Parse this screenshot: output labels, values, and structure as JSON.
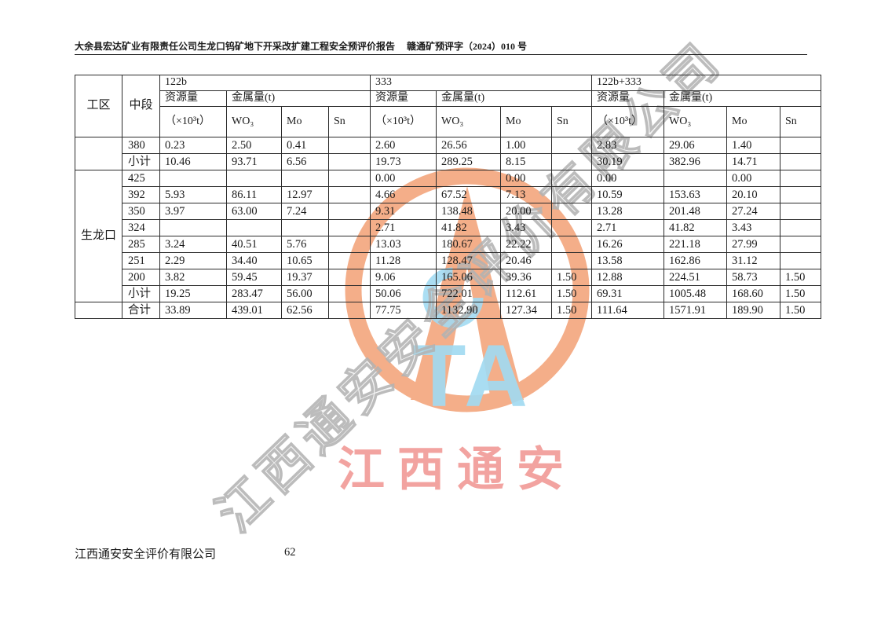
{
  "page": {
    "header_left": "大余县宏达矿业有限责任公司生龙口钨矿地下开采改扩建工程安全预评价报告",
    "header_right": "赣通矿预评字（2024）010 号",
    "footer_company": "江西通安安全评价有限公司",
    "page_number": "62"
  },
  "watermark": {
    "diagonal_text": "江西通安安全评价有限公司",
    "brand_text": "江西通安",
    "logo_letters": "TA",
    "colors": {
      "logo_orange": "#f29d70",
      "logo_blue": "#8ed3ee",
      "brand_red": "#f2a3a0",
      "diagonal_gray": "#c9c9c9"
    }
  },
  "table": {
    "work_area_header": "工区",
    "level_header": "中段",
    "area_label": "生龙口",
    "groups": [
      {
        "label": "122b",
        "resource": "资源量",
        "unit": "（×10³t）",
        "metal": "金属量(t)",
        "metals": [
          "WO₃",
          "Mo",
          "Sn"
        ]
      },
      {
        "label": "333",
        "resource": "资源量",
        "unit": "（×10³t）",
        "metal": "金属量(t)",
        "metals": [
          "WO₃",
          "Mo",
          "Sn"
        ]
      },
      {
        "label": "122b+333",
        "resource": "资源量",
        "unit": "（×10³t）",
        "metal": "金属量(t)",
        "metals": [
          "WO₃",
          "Mo",
          "Sn"
        ]
      }
    ],
    "rows": [
      {
        "level": "380",
        "area": {
          "label": "",
          "span": 2
        },
        "cells": [
          "0.23",
          "2.50",
          "0.41",
          "",
          "2.60",
          "26.56",
          "1.00",
          "",
          "2.83",
          "29.06",
          "1.40",
          ""
        ]
      },
      {
        "level": "小计",
        "cells": [
          "10.46",
          "93.71",
          "6.56",
          "",
          "19.73",
          "289.25",
          "8.15",
          "",
          "30.19",
          "382.96",
          "14.71",
          ""
        ]
      },
      {
        "level": "425",
        "area": {
          "label": "生龙口",
          "span": 8
        },
        "cells": [
          "",
          "",
          "",
          "",
          "0.00",
          "",
          "0.00",
          "",
          "0.00",
          "",
          "0.00",
          ""
        ]
      },
      {
        "level": "392",
        "cells": [
          "5.93",
          "86.11",
          "12.97",
          "",
          "4.66",
          "67.52",
          "7.13",
          "",
          "10.59",
          "153.63",
          "20.10",
          ""
        ]
      },
      {
        "level": "350",
        "cells": [
          "3.97",
          "63.00",
          "7.24",
          "",
          "9.31",
          "138.48",
          "20.00",
          "",
          "13.28",
          "201.48",
          "27.24",
          ""
        ]
      },
      {
        "level": "324",
        "cells": [
          "",
          "",
          "",
          "",
          "2.71",
          "41.82",
          "3.43",
          "",
          "2.71",
          "41.82",
          "3.43",
          ""
        ]
      },
      {
        "level": "285",
        "cells": [
          "3.24",
          "40.51",
          "5.76",
          "",
          "13.03",
          "180.67",
          "22.22",
          "",
          "16.26",
          "221.18",
          "27.99",
          ""
        ]
      },
      {
        "level": "251",
        "cells": [
          "2.29",
          "34.40",
          "10.65",
          "",
          "11.28",
          "128.47",
          "20.46",
          "",
          "13.58",
          "162.86",
          "31.12",
          ""
        ]
      },
      {
        "level": "200",
        "cells": [
          "3.82",
          "59.45",
          "19.37",
          "",
          "9.06",
          "165.06",
          "39.36",
          "1.50",
          "12.88",
          "224.51",
          "58.73",
          "1.50"
        ]
      },
      {
        "level": "小计",
        "cells": [
          "19.25",
          "283.47",
          "56.00",
          "",
          "50.06",
          "722.01",
          "112.61",
          "1.50",
          "69.31",
          "1005.48",
          "168.60",
          "1.50"
        ]
      },
      {
        "level": "合计",
        "area": {
          "label": "",
          "span": 1
        },
        "cells": [
          "33.89",
          "439.01",
          "62.56",
          "",
          "77.75",
          "1132.90",
          "127.34",
          "1.50",
          "111.64",
          "1571.91",
          "189.90",
          "1.50"
        ]
      }
    ]
  }
}
